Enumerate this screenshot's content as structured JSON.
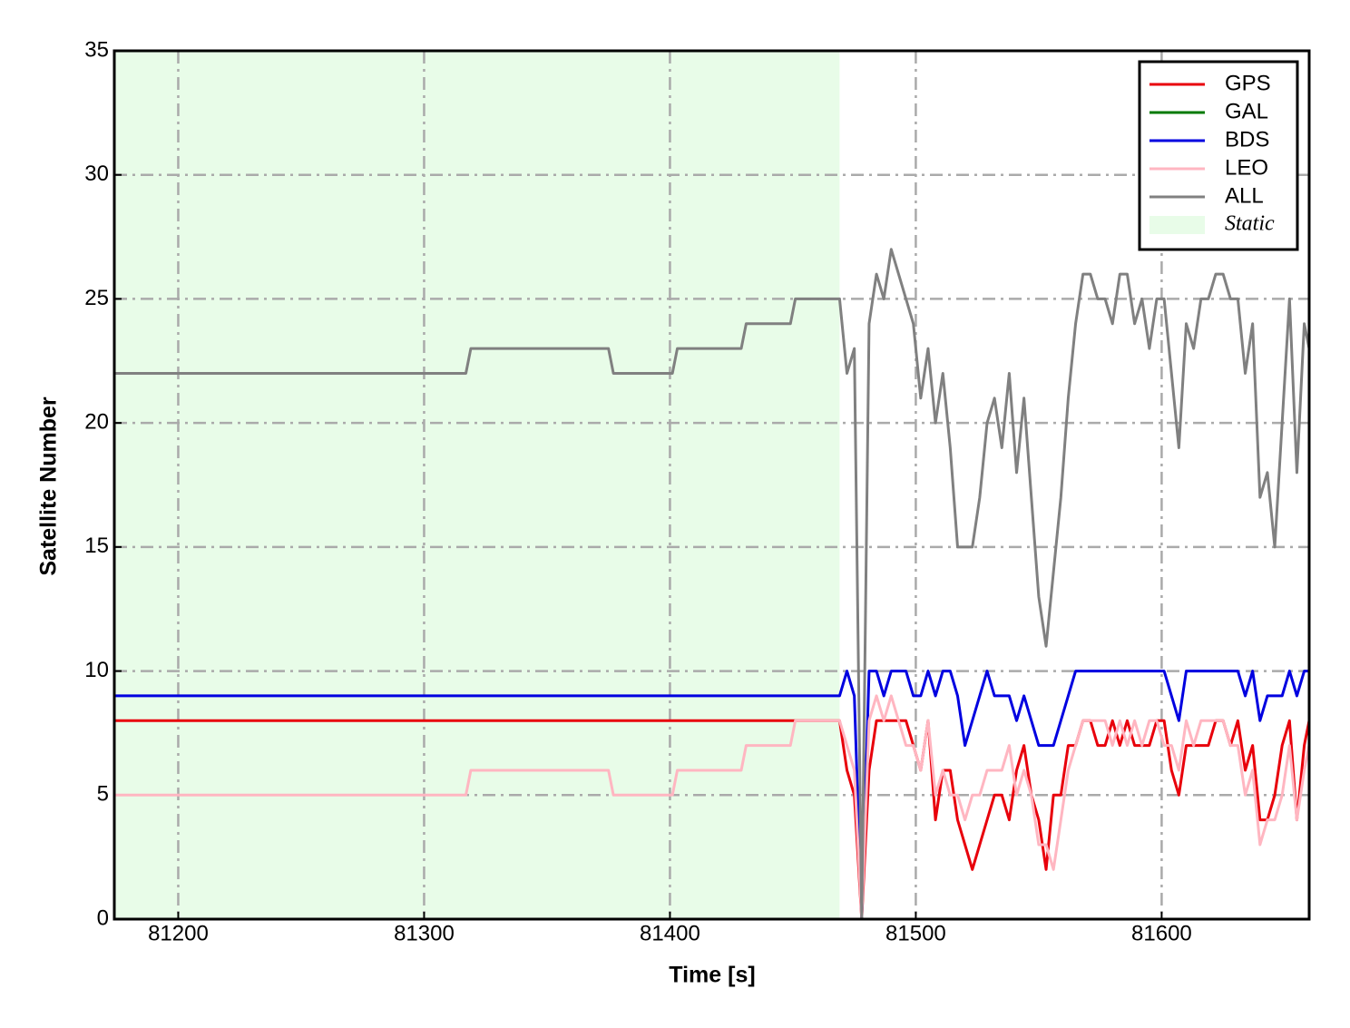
{
  "chart_data": {
    "type": "line",
    "xlabel": "Time [s]",
    "ylabel": "Satellite Number",
    "xlim": [
      81174,
      81660
    ],
    "ylim": [
      0,
      35
    ],
    "xticks": [
      81200,
      81300,
      81400,
      81500,
      81600
    ],
    "yticks": [
      0,
      5,
      10,
      15,
      20,
      25,
      30,
      35
    ],
    "grid": true,
    "legend_position": "upper right",
    "shaded_region": {
      "label": "Static",
      "xlim": [
        81174,
        81469
      ],
      "color": "#e8fce8"
    },
    "x": [
      81174,
      81317,
      81319,
      81375,
      81377,
      81401,
      81403,
      81429,
      81431,
      81449,
      81451,
      81469,
      81472,
      81475,
      81478,
      81481,
      81484,
      81487,
      81490,
      81493,
      81496,
      81499,
      81502,
      81505,
      81508,
      81511,
      81514,
      81517,
      81520,
      81523,
      81526,
      81529,
      81532,
      81535,
      81538,
      81541,
      81544,
      81547,
      81550,
      81553,
      81556,
      81559,
      81562,
      81565,
      81568,
      81571,
      81574,
      81577,
      81580,
      81583,
      81586,
      81589,
      81592,
      81595,
      81598,
      81601,
      81604,
      81607,
      81610,
      81613,
      81616,
      81619,
      81622,
      81625,
      81628,
      81631,
      81634,
      81637,
      81640,
      81643,
      81646,
      81649,
      81652,
      81655,
      81658,
      81660
    ],
    "series": [
      {
        "name": "GPS",
        "color": "#e8000b",
        "values": [
          8,
          8,
          8,
          8,
          8,
          8,
          8,
          8,
          8,
          8,
          8,
          8,
          6,
          5,
          0,
          6,
          8,
          8,
          8,
          8,
          8,
          7,
          6,
          8,
          4,
          6,
          6,
          4,
          3,
          2,
          3,
          4,
          5,
          5,
          4,
          6,
          7,
          5,
          4,
          2,
          5,
          5,
          7,
          7,
          8,
          8,
          7,
          7,
          8,
          7,
          8,
          7,
          7,
          7,
          8,
          8,
          6,
          5,
          7,
          7,
          7,
          7,
          8,
          8,
          7,
          8,
          6,
          7,
          4,
          4,
          5,
          7,
          8,
          4,
          7,
          8
        ]
      },
      {
        "name": "GAL",
        "color": "#007a00",
        "values": [
          0,
          0,
          0,
          0,
          0,
          0,
          0,
          0,
          0,
          0,
          0,
          0,
          0,
          0,
          0,
          0,
          0,
          0,
          0,
          0,
          0,
          0,
          0,
          0,
          0,
          0,
          0,
          0,
          0,
          0,
          0,
          0,
          0,
          0,
          0,
          0,
          0,
          0,
          0,
          0,
          0,
          0,
          0,
          0,
          0,
          0,
          0,
          0,
          0,
          0,
          0,
          0,
          0,
          0,
          0,
          0,
          0,
          0,
          0,
          0,
          0,
          0,
          0,
          0,
          0,
          0,
          0,
          0,
          0,
          0,
          0,
          0,
          0,
          0,
          0,
          0
        ]
      },
      {
        "name": "BDS",
        "color": "#0000e0",
        "values": [
          9,
          9,
          9,
          9,
          9,
          9,
          9,
          9,
          9,
          9,
          9,
          9,
          10,
          9,
          0,
          10,
          10,
          9,
          10,
          10,
          10,
          9,
          9,
          10,
          9,
          10,
          10,
          9,
          7,
          8,
          9,
          10,
          9,
          9,
          9,
          8,
          9,
          8,
          7,
          7,
          7,
          8,
          9,
          10,
          10,
          10,
          10,
          10,
          10,
          10,
          10,
          10,
          10,
          10,
          10,
          10,
          9,
          8,
          10,
          10,
          10,
          10,
          10,
          10,
          10,
          10,
          9,
          10,
          8,
          9,
          9,
          9,
          10,
          9,
          10,
          10
        ]
      },
      {
        "name": "LEO",
        "color": "#ffb6c1",
        "values": [
          5,
          5,
          6,
          6,
          5,
          5,
          6,
          6,
          7,
          7,
          8,
          8,
          7,
          6,
          0,
          8,
          9,
          8,
          9,
          8,
          7,
          7,
          6,
          8,
          5,
          6,
          5,
          5,
          4,
          5,
          5,
          6,
          6,
          6,
          7,
          5,
          6,
          5,
          3,
          3,
          2,
          4,
          6,
          7,
          8,
          8,
          8,
          8,
          7,
          8,
          7,
          8,
          7,
          8,
          8,
          7,
          7,
          6,
          8,
          7,
          8,
          8,
          8,
          8,
          7,
          7,
          5,
          6,
          3,
          4,
          4,
          5,
          7,
          4,
          6,
          7
        ]
      },
      {
        "name": "ALL",
        "color": "#808080",
        "values": [
          22,
          22,
          23,
          23,
          22,
          22,
          23,
          23,
          24,
          24,
          25,
          25,
          22,
          23,
          0,
          24,
          26,
          25,
          27,
          26,
          25,
          24,
          21,
          23,
          20,
          22,
          19,
          15,
          15,
          15,
          17,
          20,
          21,
          19,
          22,
          18,
          21,
          17,
          13,
          11,
          14,
          17,
          21,
          24,
          26,
          26,
          25,
          25,
          24,
          26,
          26,
          24,
          25,
          23,
          25,
          25,
          22,
          19,
          24,
          23,
          25,
          25,
          26,
          26,
          25,
          25,
          22,
          24,
          17,
          18,
          15,
          20,
          25,
          18,
          24,
          23
        ]
      }
    ]
  }
}
